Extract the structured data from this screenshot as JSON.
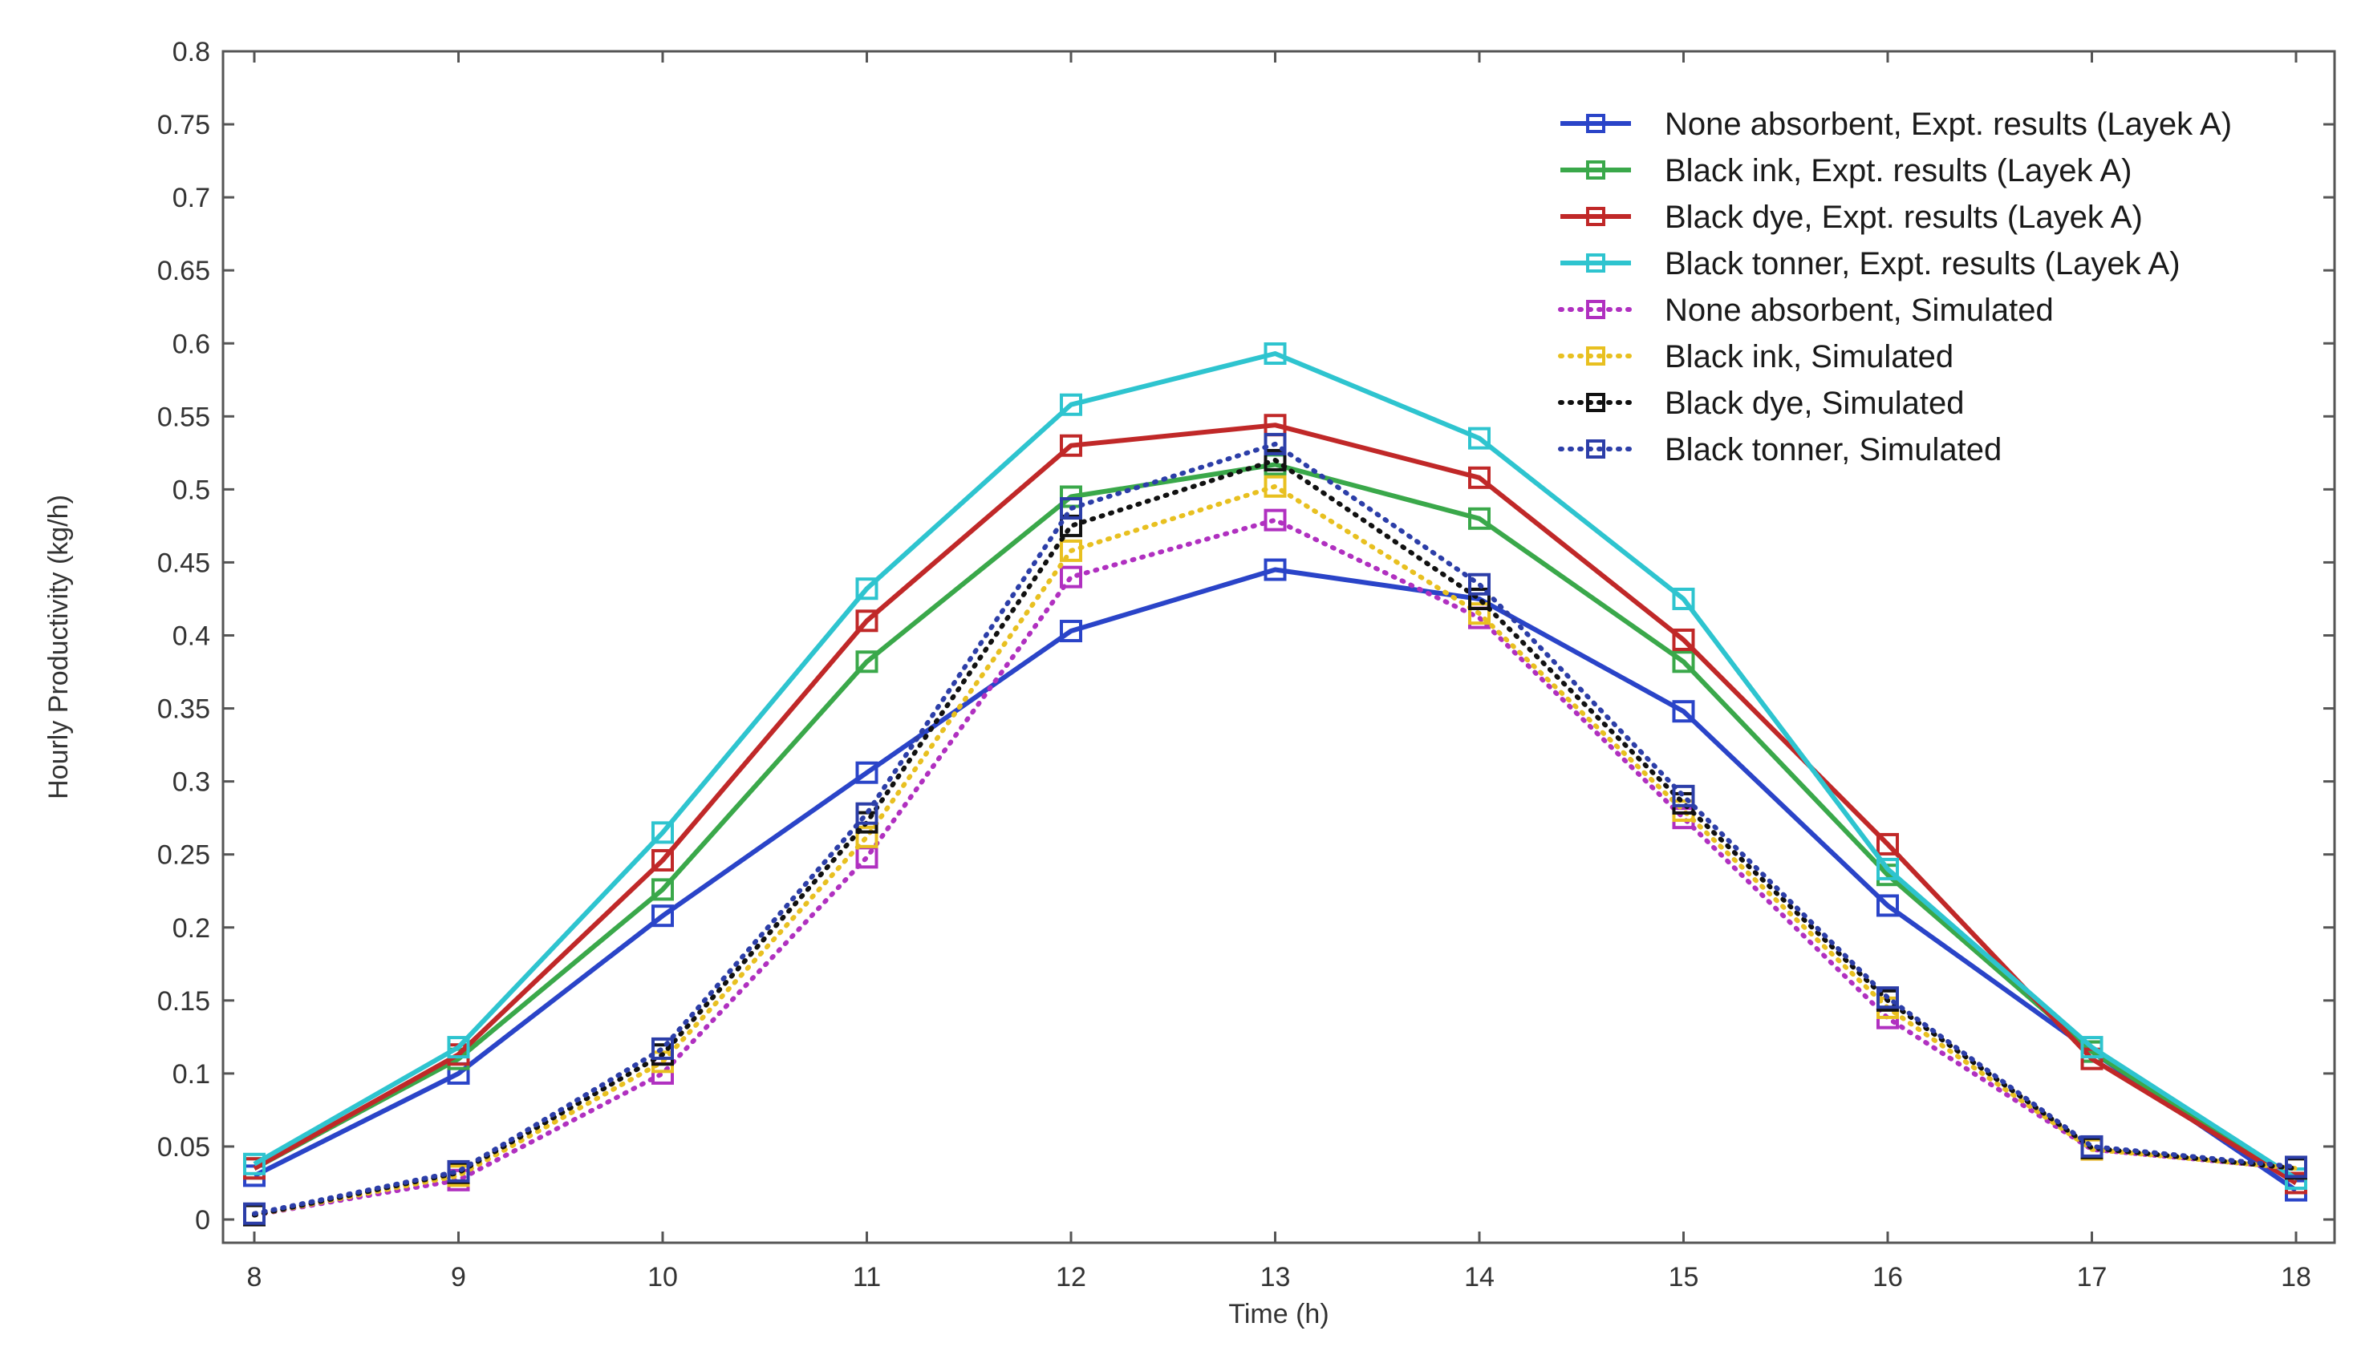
{
  "chart_data": {
    "type": "line",
    "title": "",
    "xlabel": "Time (h)",
    "ylabel": "Hourly Productivity (kg/h)",
    "xlim": [
      8,
      18
    ],
    "ylim": [
      0,
      0.8
    ],
    "grid": false,
    "legend_position": "top-right",
    "x_ticks": [
      "8",
      "9",
      "10",
      "11",
      "12",
      "13",
      "14",
      "15",
      "16",
      "17",
      "18"
    ],
    "y_ticks": [
      "0",
      "0.05",
      "0.1",
      "0.15",
      "0.2",
      "0.25",
      "0.3",
      "0.35",
      "0.4",
      "0.45",
      "0.5",
      "0.55",
      "0.6",
      "0.65",
      "0.7",
      "0.75",
      "0.8"
    ],
    "x": [
      8,
      9,
      10,
      11,
      12,
      13,
      14,
      15,
      16,
      17,
      18
    ],
    "series": [
      {
        "name": "None absorbent, Expt. results (Layek A)",
        "color": "#2a44c8",
        "style": "solid",
        "values": [
          0.03,
          0.1,
          0.208,
          0.306,
          0.403,
          0.445,
          0.425,
          0.348,
          0.215,
          0.115,
          0.02
        ]
      },
      {
        "name": "Black ink, Expt. results (Layek A)",
        "color": "#3aa84a",
        "style": "solid",
        "values": [
          0.035,
          0.11,
          0.226,
          0.382,
          0.495,
          0.517,
          0.48,
          0.382,
          0.236,
          0.115,
          0.025
        ]
      },
      {
        "name": "Black dye, Expt. results (Layek A)",
        "color": "#c02828",
        "style": "solid",
        "values": [
          0.035,
          0.113,
          0.246,
          0.41,
          0.53,
          0.544,
          0.508,
          0.397,
          0.257,
          0.11,
          0.025
        ]
      },
      {
        "name": "Black tonner, Expt. results (Layek A)",
        "color": "#2ec4cf",
        "style": "solid",
        "values": [
          0.038,
          0.118,
          0.265,
          0.432,
          0.558,
          0.593,
          0.535,
          0.425,
          0.24,
          0.118,
          0.028
        ]
      },
      {
        "name": "None absorbent, Simulated",
        "color": "#b030c0",
        "style": "dotted",
        "values": [
          0.003,
          0.027,
          0.1,
          0.248,
          0.44,
          0.479,
          0.412,
          0.275,
          0.138,
          0.048,
          0.035
        ]
      },
      {
        "name": "Black ink, Simulated",
        "color": "#e8c020",
        "style": "dotted",
        "values": [
          0.003,
          0.03,
          0.108,
          0.262,
          0.458,
          0.502,
          0.415,
          0.28,
          0.145,
          0.048,
          0.035
        ]
      },
      {
        "name": "Black dye, Simulated",
        "color": "#111111",
        "style": "dotted",
        "values": [
          0.003,
          0.032,
          0.113,
          0.272,
          0.475,
          0.52,
          0.425,
          0.285,
          0.15,
          0.049,
          0.035
        ]
      },
      {
        "name": "Black tonner, Simulated",
        "color": "#2c3ea8",
        "style": "dotted",
        "values": [
          0.004,
          0.033,
          0.117,
          0.278,
          0.487,
          0.531,
          0.435,
          0.29,
          0.152,
          0.05,
          0.036
        ]
      }
    ]
  }
}
